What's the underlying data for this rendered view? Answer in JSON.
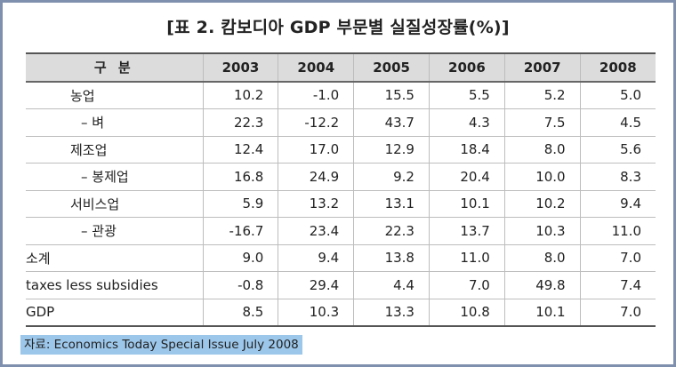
{
  "title": "[표 2. 캄보디아 GDP 부문별 실질성장률(%)]",
  "table": {
    "header_label": "구 분",
    "years": [
      "2003",
      "2004",
      "2005",
      "2006",
      "2007",
      "2008"
    ],
    "rows": [
      {
        "label": "농업",
        "values": [
          "10.2",
          "-1.0",
          "15.5",
          "5.5",
          "5.2",
          "5.0"
        ]
      },
      {
        "label": "– 벼",
        "values": [
          "22.3",
          "-12.2",
          "43.7",
          "4.3",
          "7.5",
          "4.5"
        ]
      },
      {
        "label": "제조업",
        "values": [
          "12.4",
          "17.0",
          "12.9",
          "18.4",
          "8.0",
          "5.6"
        ]
      },
      {
        "label": "– 봉제업",
        "values": [
          "16.8",
          "24.9",
          "9.2",
          "20.4",
          "10.0",
          "8.3"
        ]
      },
      {
        "label": "서비스업",
        "values": [
          "5.9",
          "13.2",
          "13.1",
          "10.1",
          "10.2",
          "9.4"
        ]
      },
      {
        "label": "– 관광",
        "values": [
          "-16.7",
          "23.4",
          "22.3",
          "13.7",
          "10.3",
          "11.0"
        ]
      },
      {
        "label": "소계",
        "values": [
          "9.0",
          "9.4",
          "13.8",
          "11.0",
          "8.0",
          "7.0"
        ]
      },
      {
        "label": "taxes less subsidies",
        "values": [
          "-0.8",
          "29.4",
          "4.4",
          "7.0",
          "49.8",
          "7.4"
        ]
      },
      {
        "label": "GDP",
        "values": [
          "8.5",
          "10.3",
          "13.3",
          "10.8",
          "10.1",
          "7.0"
        ]
      }
    ]
  },
  "source": "자료: Economics Today Special Issue July 2008"
}
